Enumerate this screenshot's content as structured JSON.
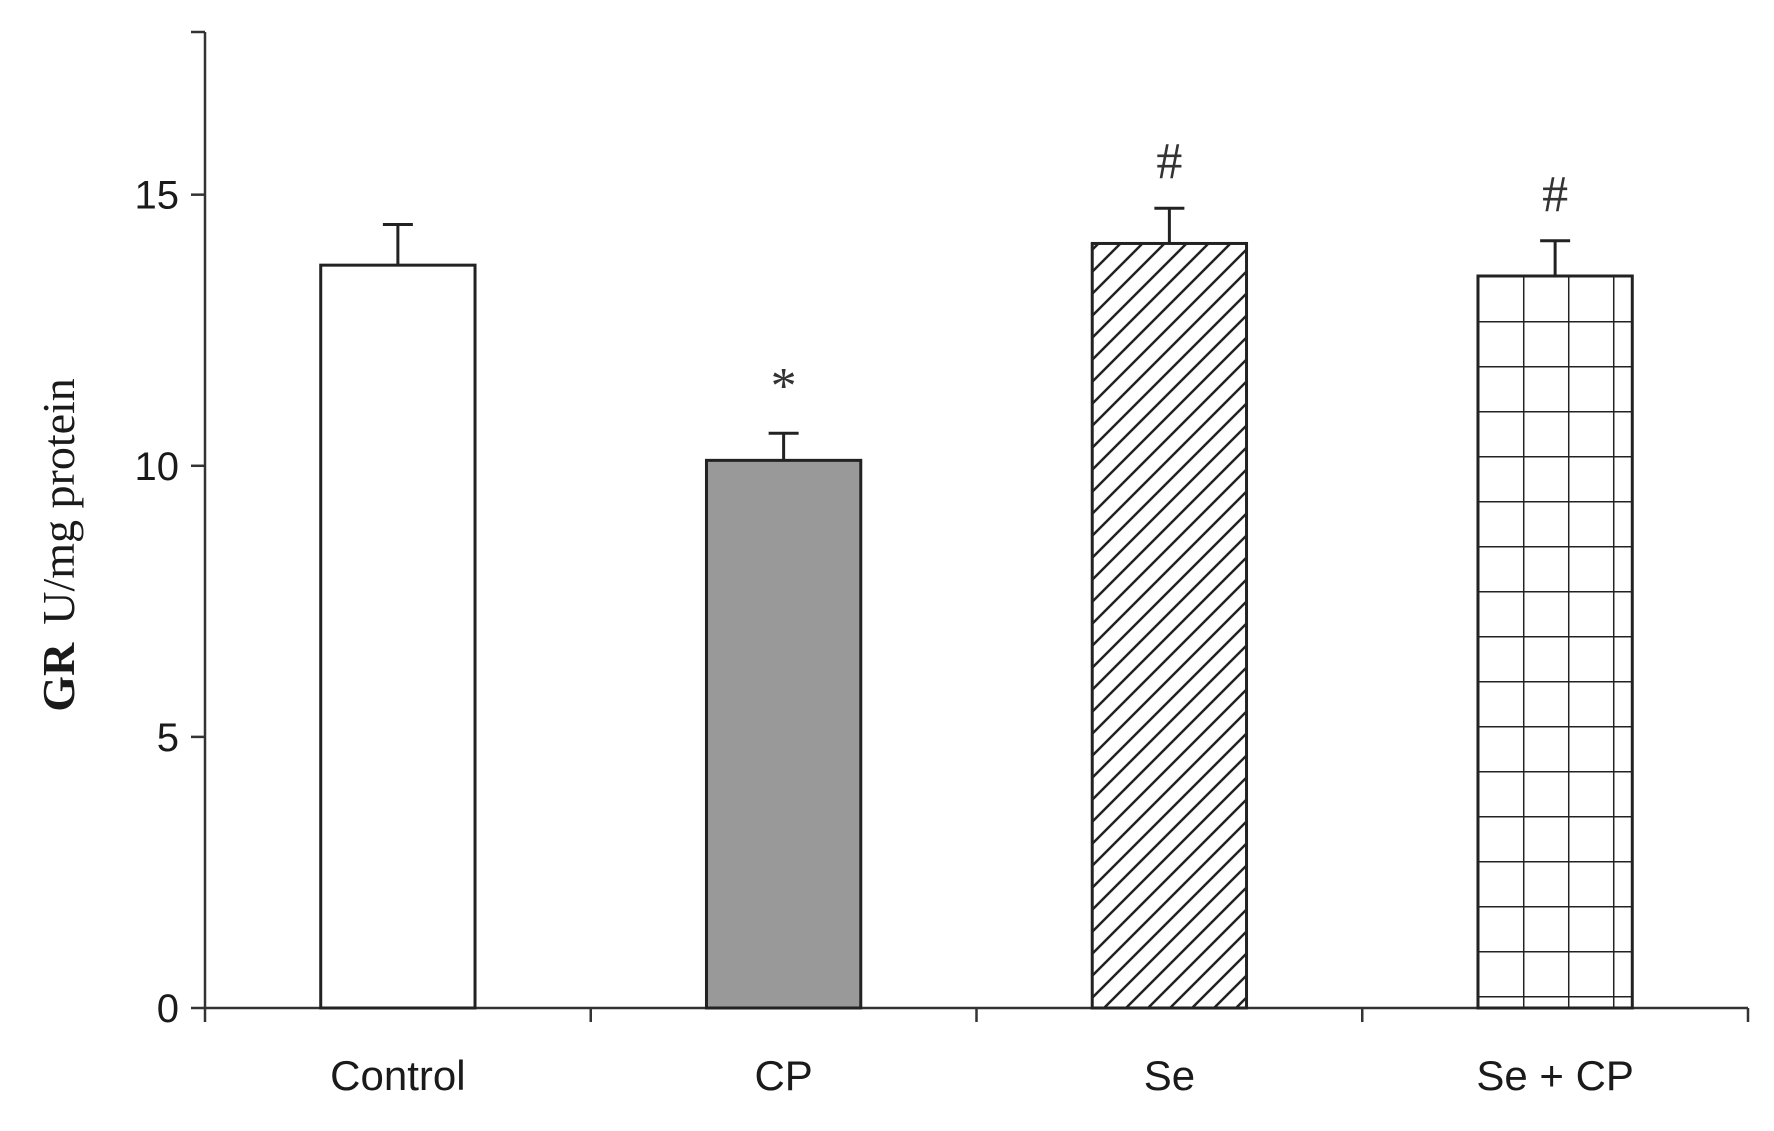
{
  "chart_data": {
    "type": "bar",
    "title": "",
    "xlabel": "",
    "ylabel": {
      "prefix": "GR",
      "unit": "U/mg protein"
    },
    "ylim": [
      0,
      18
    ],
    "yticks": [
      0,
      5,
      10,
      15
    ],
    "grid": false,
    "legend": "none",
    "categories": [
      "Control",
      "CP",
      "Se",
      "Se + CP"
    ],
    "values": [
      13.7,
      10.1,
      14.1,
      13.5
    ],
    "errors": [
      0.75,
      0.5,
      0.65,
      0.65
    ],
    "annotations": [
      "",
      "*",
      "#",
      "#"
    ],
    "fills": [
      "plain",
      "solid",
      "hatch",
      "grid"
    ],
    "colors": {
      "plain": "#ffffff",
      "solid": "#999999",
      "stroke": "#222222",
      "axis": "#333333"
    }
  }
}
